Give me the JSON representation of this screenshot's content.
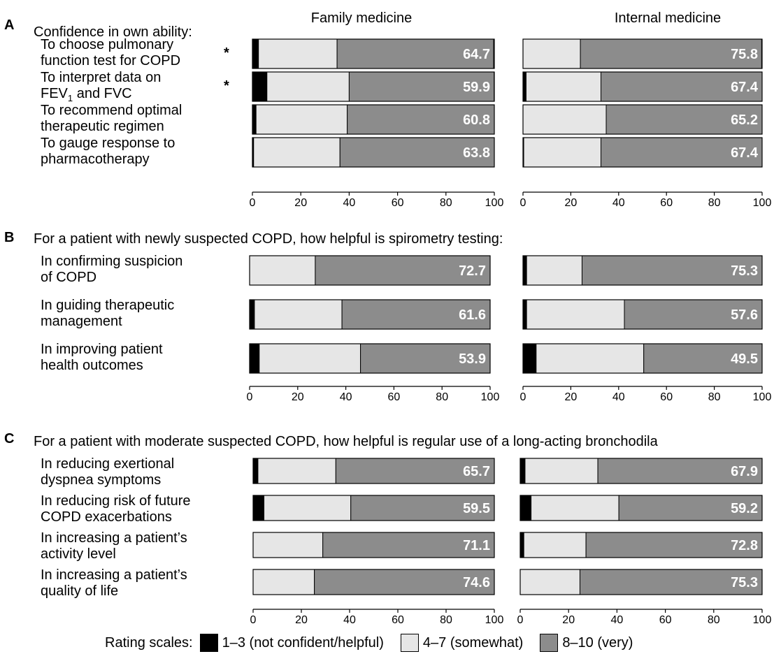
{
  "colors": {
    "low": "#000000",
    "mid": "#e6e6e6",
    "high": "#8c8c8c",
    "value_text": "#ffffff"
  },
  "columns": [
    "Family medicine",
    "Internal medicine"
  ],
  "legend": {
    "title": "Rating scales:",
    "items": [
      {
        "label": "1–3 (not confident/helpful)",
        "color": "#000000"
      },
      {
        "label": "4–7 (somewhat)",
        "color": "#e6e6e6"
      },
      {
        "label": "8–10 (very)",
        "color": "#8c8c8c"
      }
    ]
  },
  "chart_data": [
    {
      "type": "bar",
      "stacked": true,
      "orientation": "horizontal",
      "panel": "A",
      "title": "Confidence in own ability:",
      "xlim": [
        0,
        100
      ],
      "ticks": [
        0,
        20,
        40,
        60,
        80,
        100
      ],
      "rows": [
        {
          "label_lines": [
            "To choose pulmonary",
            "function test for COPD"
          ],
          "marker": "*",
          "family": [
            2.5,
            32.5,
            64.7
          ],
          "internal": [
            0,
            24.0,
            75.8
          ],
          "family_label": "64.7",
          "internal_label": "75.8"
        },
        {
          "label_lines": [
            "To interpret data on",
            "FEV|1| and FVC"
          ],
          "marker": "*",
          "family": [
            6.0,
            34.0,
            59.9
          ],
          "internal": [
            1.3,
            31.3,
            67.4
          ],
          "family_label": "59.9",
          "internal_label": "67.4"
        },
        {
          "label_lines": [
            "To recommend optimal",
            "therapeutic regimen"
          ],
          "marker": "",
          "family": [
            1.5,
            37.7,
            60.8
          ],
          "internal": [
            0,
            34.8,
            65.2
          ],
          "family_label": "60.8",
          "internal_label": "65.2"
        },
        {
          "label_lines": [
            "To gauge response to",
            "pharmacotherapy"
          ],
          "marker": "",
          "family": [
            0.5,
            35.7,
            63.8
          ],
          "internal": [
            0.3,
            32.3,
            67.4
          ],
          "family_label": "63.8",
          "internal_label": "67.4"
        }
      ]
    },
    {
      "type": "bar",
      "stacked": true,
      "orientation": "horizontal",
      "panel": "B",
      "title": "For a patient with newly suspected COPD, how helpful is spirometry testing:",
      "xlim": [
        0,
        100
      ],
      "ticks": [
        0,
        20,
        40,
        60,
        80,
        100
      ],
      "rows": [
        {
          "label_lines": [
            "In confirming suspicion",
            "of COPD"
          ],
          "marker": "",
          "family": [
            0,
            27.3,
            72.7
          ],
          "internal": [
            1.5,
            23.2,
            75.3
          ],
          "family_label": "72.7",
          "internal_label": "75.3"
        },
        {
          "label_lines": [
            "In guiding therapeutic",
            "management"
          ],
          "marker": "",
          "family": [
            2.0,
            36.4,
            61.6
          ],
          "internal": [
            1.5,
            40.9,
            57.6
          ],
          "family_label": "61.6",
          "internal_label": "57.6"
        },
        {
          "label_lines": [
            "In improving patient",
            "health outcomes"
          ],
          "marker": "",
          "family": [
            4.0,
            42.1,
            53.9
          ],
          "internal": [
            5.5,
            45.0,
            49.5
          ],
          "family_label": "53.9",
          "internal_label": "49.5"
        }
      ]
    },
    {
      "type": "bar",
      "stacked": true,
      "orientation": "horizontal",
      "panel": "C",
      "title": "For a patient with moderate suspected COPD, how helpful is regular use of a long-acting bronchodila",
      "xlim": [
        0,
        100
      ],
      "ticks": [
        0,
        20,
        40,
        60,
        80,
        100
      ],
      "rows": [
        {
          "label_lines": [
            "In reducing exertional",
            "dyspnea symptoms"
          ],
          "marker": "",
          "family": [
            2.0,
            32.3,
            65.7
          ],
          "internal": [
            2.0,
            30.1,
            67.9
          ],
          "family_label": "65.7",
          "internal_label": "67.9"
        },
        {
          "label_lines": [
            "In reducing risk of future",
            "COPD exacerbations"
          ],
          "marker": "",
          "family": [
            4.5,
            36.0,
            59.5
          ],
          "internal": [
            4.5,
            36.3,
            59.2
          ],
          "family_label": "59.5",
          "internal_label": "59.2"
        },
        {
          "label_lines": [
            "In increasing a patient’s",
            "activity level"
          ],
          "marker": "",
          "family": [
            0,
            28.9,
            71.1
          ],
          "internal": [
            1.5,
            25.7,
            72.8
          ],
          "family_label": "71.1",
          "internal_label": "72.8"
        },
        {
          "label_lines": [
            "In increasing a patient’s",
            "quality of life"
          ],
          "marker": "",
          "family": [
            0,
            25.4,
            74.6
          ],
          "internal": [
            0,
            24.7,
            75.3
          ],
          "family_label": "74.6",
          "internal_label": "75.3"
        }
      ]
    }
  ]
}
